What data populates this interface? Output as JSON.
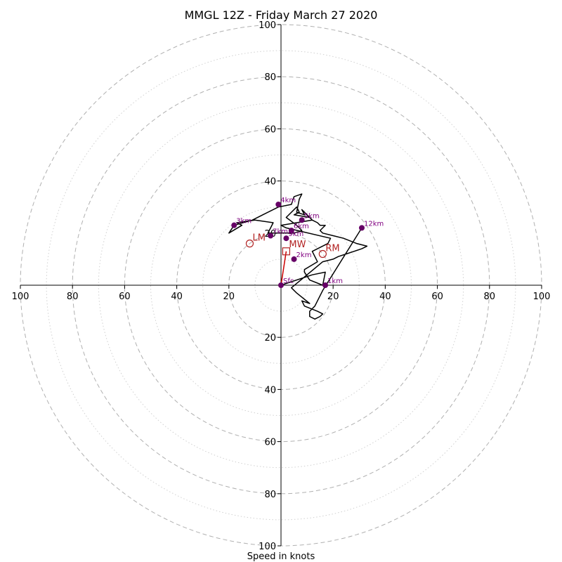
{
  "colors": {
    "trace": "#000000",
    "marker": "#660066",
    "marker_label": "#800080",
    "motion": "#b22222",
    "mean_wind": "#cc0000",
    "ring_major": "#b0b0b0",
    "ring_minor": "#d0d0d0"
  },
  "chart_data": {
    "type": "line",
    "title": "MMGL 12Z - Friday March 27 2020",
    "xlabel": "Speed in knots",
    "ylabel": "",
    "range": 100,
    "ticks": [
      20,
      40,
      60,
      80,
      100
    ],
    "tick_labels": [
      "20",
      "40",
      "60",
      "80",
      "100"
    ],
    "grid": true,
    "wind_trace": {
      "u": [
        0,
        12,
        17,
        16,
        11,
        9,
        9,
        14,
        12,
        18,
        19,
        2,
        0,
        12,
        11,
        5,
        7,
        6,
        2,
        6,
        8,
        5,
        -5,
        -4,
        -3,
        -10,
        -17,
        -15,
        -20,
        -18,
        -11,
        -7,
        -1,
        4,
        5,
        8,
        7,
        6,
        9,
        8,
        11,
        12,
        14,
        15,
        17,
        16,
        15,
        16,
        20,
        24,
        29,
        33,
        31,
        28,
        25,
        22,
        20,
        16,
        4,
        6,
        11,
        8,
        9,
        14,
        16,
        15,
        13,
        11,
        11,
        13,
        16,
        31
      ],
      "v": [
        0,
        4,
        5,
        0,
        2,
        5,
        6,
        9,
        13,
        16,
        18,
        22,
        23,
        25,
        26,
        27,
        28,
        30,
        26,
        23,
        21,
        20,
        20,
        22,
        24,
        25,
        24,
        23,
        20,
        23,
        25,
        27,
        30,
        31,
        34,
        35,
        33,
        28,
        27,
        29,
        26,
        25,
        24,
        23,
        23,
        22,
        21,
        20,
        19,
        18,
        16,
        15,
        14,
        13,
        12,
        11,
        10,
        9,
        -1,
        -3,
        -7,
        -6,
        -8,
        -10,
        -11,
        -12,
        -13,
        -12,
        -10,
        -8,
        -2,
        22
      ]
    },
    "height_markers": [
      {
        "label": "Sfc",
        "u": 0,
        "v": 0
      },
      {
        "label": "1km",
        "u": 17,
        "v": 0
      },
      {
        "label": "2km",
        "u": 5,
        "v": 10
      },
      {
        "label": "3km",
        "u": -18,
        "v": 23
      },
      {
        "label": "4km",
        "u": -1,
        "v": 31
      },
      {
        "label": "5km",
        "u": 8,
        "v": 25
      },
      {
        "label": "6km",
        "u": 4,
        "v": 21
      },
      {
        "label": "7km",
        "u": -4,
        "v": 19
      },
      {
        "label": "9km",
        "u": 2,
        "v": 18
      },
      {
        "label": "12km",
        "u": 31,
        "v": 22
      }
    ],
    "storm_motion": [
      {
        "label": "LM",
        "u": -12,
        "v": 16
      },
      {
        "label": "RM",
        "u": 16,
        "v": 12
      },
      {
        "label": "MW",
        "u": 2,
        "v": 13
      }
    ],
    "mean_wind_vector": {
      "u": 2,
      "v": 13
    }
  }
}
